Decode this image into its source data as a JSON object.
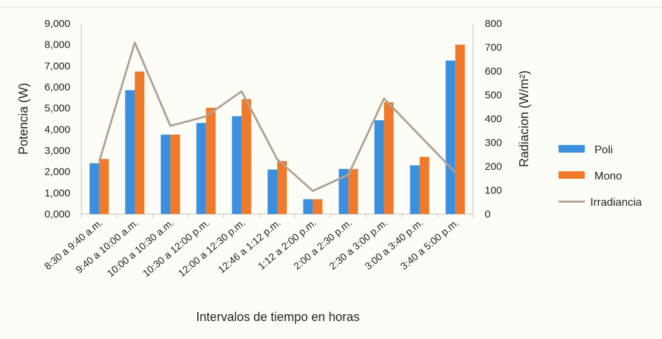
{
  "chart_data": {
    "type": "bar",
    "title": "",
    "xlabel": "Intervalos de tiempo en horas",
    "ylabel": "Potencia (W)",
    "y2label": "Radiacion (W/m²)",
    "categories": [
      "8:30 a 9:40 a.m.",
      "9:40 a 10:00 a.m.",
      "10:00 a 10:30 a.m.",
      "10:30 a 12:00 p.m.",
      "12:00 a 12:30 p.m.",
      "12:46 a  1:12 p.m.",
      "1:12 a  2:00 p.m.",
      "2:00 a 2:30 p.m.",
      "2:30 a 3:00 p.m.",
      "3:00 a 3:40 p.m.",
      "3:40 a 5:00 p.m."
    ],
    "series": [
      {
        "name": "Poli",
        "type": "bar",
        "axis": "left",
        "color": "#3a8fdf",
        "values": [
          2400,
          5850,
          3750,
          4300,
          4620,
          2100,
          700,
          2130,
          4430,
          2300,
          7250
        ]
      },
      {
        "name": "Mono",
        "type": "bar",
        "axis": "left",
        "color": "#f07a2a",
        "values": [
          2600,
          6730,
          3750,
          5020,
          5430,
          2500,
          700,
          2130,
          5280,
          2700,
          8000
        ]
      },
      {
        "name": "Irradiancia",
        "type": "line",
        "axis": "right",
        "color": "#b0a393",
        "values": [
          220,
          720,
          370,
          410,
          515,
          230,
          97,
          165,
          485,
          330,
          175
        ]
      }
    ],
    "ylim": [
      0,
      9000
    ],
    "y2lim": [
      0,
      800
    ],
    "yticks": [
      "0,000",
      "1,000",
      "2,000",
      "3,000",
      "4,000",
      "5,000",
      "6,000",
      "7,000",
      "8,000",
      "9,000"
    ],
    "y2ticks": [
      "0",
      "100",
      "200",
      "300",
      "400",
      "500",
      "600",
      "700",
      "800"
    ],
    "grid": false,
    "legend_position": "right"
  }
}
